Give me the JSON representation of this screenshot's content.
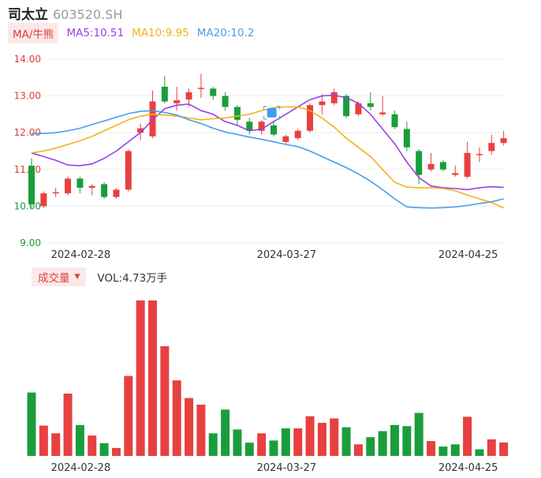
{
  "header": {
    "name": "司太立",
    "code": "603520.SH"
  },
  "legend": {
    "ma_tag": "MA/牛熊",
    "ma5": "MA5:10.51",
    "ma10": "MA10:9.95",
    "ma20": "MA20:10.2"
  },
  "volume_legend": {
    "tag": "成交量",
    "caret_icon": "caret-down-icon",
    "vol": "VOL:4.73万手"
  },
  "colors": {
    "up": "#e84040",
    "down": "#1a9e3c",
    "ma5": "#9b3ee8",
    "ma10": "#f2b31a",
    "ma20": "#4a9ee8",
    "marker": "#3f9cf0"
  },
  "chart_data": [
    {
      "type": "candlestick",
      "title": "",
      "ylim": [
        9.0,
        14.0
      ],
      "yticks": [
        "14.00",
        "13.00",
        "12.00",
        "11.00",
        "10.00",
        "9.00"
      ],
      "xticks": [
        "2024-02-28",
        "2024-03-27",
        "2024-04-25"
      ],
      "candles": [
        {
          "o": 11.1,
          "c": 10.05,
          "h": 11.3,
          "l": 9.95
        },
        {
          "o": 10.0,
          "c": 10.35,
          "h": 10.4,
          "l": 9.95
        },
        {
          "o": 10.35,
          "c": 10.38,
          "h": 10.5,
          "l": 10.25
        },
        {
          "o": 10.35,
          "c": 10.75,
          "h": 10.8,
          "l": 10.3
        },
        {
          "o": 10.75,
          "c": 10.5,
          "h": 10.8,
          "l": 10.35
        },
        {
          "o": 10.5,
          "c": 10.55,
          "h": 10.6,
          "l": 10.3
        },
        {
          "o": 10.6,
          "c": 10.25,
          "h": 10.65,
          "l": 10.2
        },
        {
          "o": 10.25,
          "c": 10.45,
          "h": 10.5,
          "l": 10.2
        },
        {
          "o": 10.45,
          "c": 11.5,
          "h": 11.55,
          "l": 10.4
        },
        {
          "o": 12.0,
          "c": 12.12,
          "h": 12.25,
          "l": 11.8
        },
        {
          "o": 11.9,
          "c": 12.85,
          "h": 13.15,
          "l": 11.85
        },
        {
          "o": 13.25,
          "c": 12.85,
          "h": 13.55,
          "l": 12.8
        },
        {
          "o": 12.8,
          "c": 12.88,
          "h": 13.25,
          "l": 12.6
        },
        {
          "o": 12.9,
          "c": 13.1,
          "h": 13.2,
          "l": 12.7
        },
        {
          "o": 13.2,
          "c": 13.22,
          "h": 13.6,
          "l": 12.95
        },
        {
          "o": 13.2,
          "c": 13.0,
          "h": 13.25,
          "l": 12.9
        },
        {
          "o": 13.0,
          "c": 12.7,
          "h": 13.1,
          "l": 12.6
        },
        {
          "o": 12.7,
          "c": 12.35,
          "h": 12.75,
          "l": 12.2
        },
        {
          "o": 12.3,
          "c": 12.05,
          "h": 12.4,
          "l": 11.95
        },
        {
          "o": 12.05,
          "c": 12.3,
          "h": 12.35,
          "l": 11.95
        },
        {
          "o": 12.2,
          "c": 11.95,
          "h": 12.3,
          "l": 11.9
        },
        {
          "o": 11.75,
          "c": 11.9,
          "h": 11.95,
          "l": 11.7
        },
        {
          "o": 11.85,
          "c": 12.05,
          "h": 12.1,
          "l": 11.8
        },
        {
          "o": 12.05,
          "c": 12.75,
          "h": 12.8,
          "l": 12.0
        },
        {
          "o": 12.75,
          "c": 12.85,
          "h": 13.05,
          "l": 12.5
        },
        {
          "o": 12.8,
          "c": 13.1,
          "h": 13.2,
          "l": 12.75
        },
        {
          "o": 13.0,
          "c": 12.45,
          "h": 13.05,
          "l": 12.4
        },
        {
          "o": 12.5,
          "c": 12.8,
          "h": 12.85,
          "l": 12.45
        },
        {
          "o": 12.8,
          "c": 12.7,
          "h": 13.1,
          "l": 12.6
        },
        {
          "o": 12.5,
          "c": 12.55,
          "h": 13.0,
          "l": 12.45
        },
        {
          "o": 12.5,
          "c": 12.15,
          "h": 12.6,
          "l": 12.1
        },
        {
          "o": 12.1,
          "c": 11.6,
          "h": 12.3,
          "l": 11.5
        },
        {
          "o": 11.5,
          "c": 10.85,
          "h": 11.55,
          "l": 10.6
        },
        {
          "o": 11.0,
          "c": 11.15,
          "h": 11.45,
          "l": 10.95
        },
        {
          "o": 11.2,
          "c": 11.0,
          "h": 11.25,
          "l": 10.95
        },
        {
          "o": 10.85,
          "c": 10.9,
          "h": 11.1,
          "l": 10.8
        },
        {
          "o": 10.8,
          "c": 11.45,
          "h": 11.75,
          "l": 10.75
        },
        {
          "o": 11.4,
          "c": 11.42,
          "h": 11.6,
          "l": 11.2
        },
        {
          "o": 11.5,
          "c": 11.72,
          "h": 11.95,
          "l": 11.4
        },
        {
          "o": 11.72,
          "c": 11.85,
          "h": 12.05,
          "l": 11.65
        }
      ],
      "series": [
        {
          "name": "MA5",
          "values": [
            11.45,
            11.35,
            11.25,
            11.12,
            11.1,
            11.15,
            11.3,
            11.5,
            11.75,
            12.0,
            12.35,
            12.65,
            12.75,
            12.78,
            12.6,
            12.5,
            12.3,
            12.2,
            12.05,
            12.1,
            12.3,
            12.5,
            12.7,
            12.9,
            13.0,
            13.02,
            12.95,
            12.8,
            12.5,
            12.1,
            11.7,
            11.2,
            10.78,
            10.55,
            10.5,
            10.48,
            10.45,
            10.5,
            10.53,
            10.51
          ]
        },
        {
          "name": "MA10",
          "values": [
            11.45,
            11.5,
            11.58,
            11.68,
            11.78,
            11.9,
            12.05,
            12.2,
            12.35,
            12.45,
            12.5,
            12.48,
            12.45,
            12.4,
            12.35,
            12.38,
            12.4,
            12.45,
            12.5,
            12.6,
            12.68,
            12.7,
            12.7,
            12.6,
            12.4,
            12.15,
            11.85,
            11.6,
            11.35,
            11.0,
            10.65,
            10.52,
            10.5,
            10.5,
            10.48,
            10.42,
            10.3,
            10.2,
            10.1,
            9.95
          ]
        },
        {
          "name": "MA20",
          "values": [
            11.97,
            11.98,
            12.0,
            12.05,
            12.12,
            12.22,
            12.32,
            12.42,
            12.52,
            12.58,
            12.6,
            12.55,
            12.48,
            12.35,
            12.25,
            12.12,
            12.02,
            11.95,
            11.88,
            11.82,
            11.75,
            11.68,
            11.62,
            11.5,
            11.35,
            11.2,
            11.05,
            10.88,
            10.68,
            10.45,
            10.2,
            9.98,
            9.96,
            9.95,
            9.96,
            9.98,
            10.02,
            10.07,
            10.12,
            10.2
          ]
        }
      ],
      "marker_index": 19
    },
    {
      "type": "bar",
      "title": "",
      "xticks": [
        "2024-02-28",
        "2024-03-27",
        "2024-04-25"
      ],
      "values": [
        5.75,
        2.75,
        2.05,
        5.65,
        2.8,
        1.85,
        1.15,
        0.72,
        7.25,
        14.1,
        14.1,
        9.95,
        6.85,
        5.25,
        4.65,
        2.05,
        4.2,
        2.4,
        1.2,
        2.05,
        1.4,
        2.5,
        2.5,
        3.6,
        3.0,
        3.4,
        2.6,
        1.05,
        1.7,
        2.25,
        2.8,
        2.7,
        3.9,
        1.35,
        0.85,
        1.05,
        3.55,
        0.6,
        1.5,
        1.22
      ],
      "colors": [
        "down",
        "up",
        "up",
        "up",
        "down",
        "up",
        "down",
        "up",
        "up",
        "up",
        "up",
        "up",
        "up",
        "up",
        "up",
        "down",
        "down",
        "down",
        "down",
        "up",
        "down",
        "down",
        "up",
        "up",
        "up",
        "up",
        "down",
        "up",
        "down",
        "down",
        "down",
        "down",
        "down",
        "up",
        "down",
        "down",
        "up",
        "down",
        "up",
        "up"
      ]
    }
  ]
}
